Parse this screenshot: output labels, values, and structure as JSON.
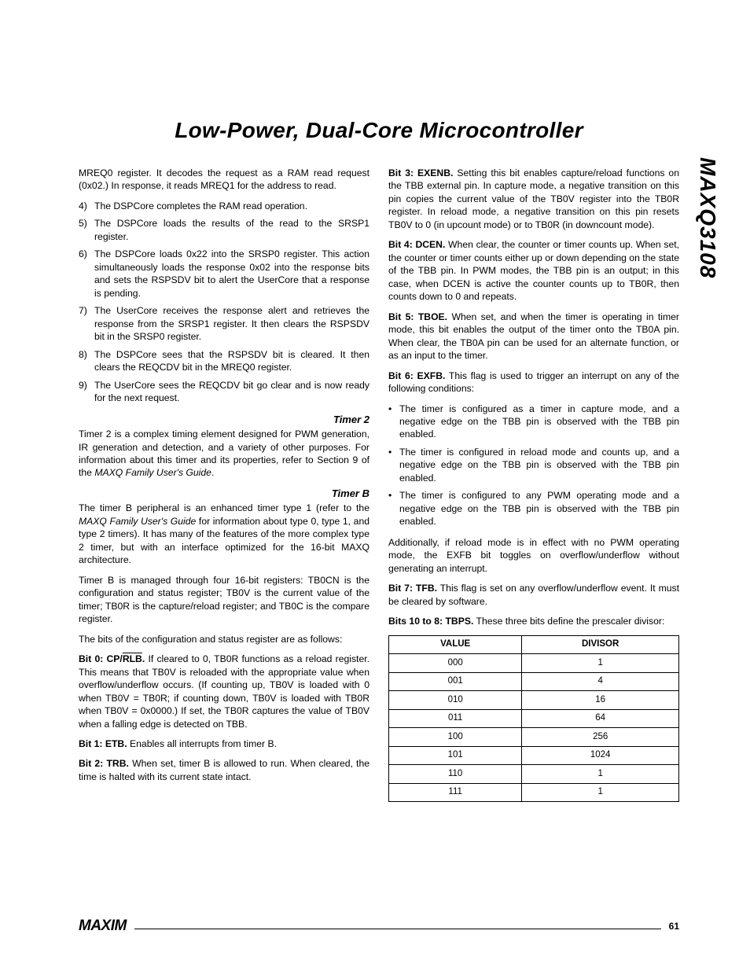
{
  "page": {
    "title": "Low-Power, Dual-Core Microcontroller",
    "partNumber": "MAXQ3108",
    "logo": "MAXIM",
    "pageNumber": "61"
  },
  "leftCol": {
    "introPara": "MREQ0 register. It decodes the request as a RAM read request (0x02.) In response, it reads MREQ1 for the address to read.",
    "numbered": [
      {
        "n": "4)",
        "t": "The DSPCore completes the RAM read operation."
      },
      {
        "n": "5)",
        "t": "The DSPCore loads the results of the read to the SRSP1 register."
      },
      {
        "n": "6)",
        "t": "The DSPCore loads 0x22 into the SRSP0 register. This action simultaneously loads the response 0x02 into the response bits and sets the RSPSDV bit to alert the UserCore that a response is pending."
      },
      {
        "n": "7)",
        "t": "The UserCore receives the response alert and retrieves the response from the SRSP1 register. It then clears the RSPSDV bit in the SRSP0 register."
      },
      {
        "n": "8)",
        "t": "The DSPCore sees that the RSPSDV bit is cleared. It then clears the REQCDV bit in the MREQ0 register."
      },
      {
        "n": "9)",
        "t": "The UserCore sees the REQCDV bit go clear and is now ready for the next request."
      }
    ],
    "timer2": {
      "heading": "Timer 2",
      "body": "Timer 2 is a complex timing element designed for PWM generation, IR generation and detection, and a variety of other purposes. For information about this timer and its properties, refer to Section 9 of the ",
      "ital": "MAXQ Family User's Guide",
      "tail": "."
    },
    "timerB": {
      "heading": "Timer B",
      "p1a": "The timer B peripheral is an enhanced timer type 1 (refer to the ",
      "p1ital": "MAXQ Family User's Guide",
      "p1b": " for information about type 0, type 1, and type 2 timers). It has many of the features of the more complex type 2 timer, but with an interface optimized for the 16-bit MAXQ architecture.",
      "p2": "Timer B is managed through four 16-bit registers: TB0CN is the configuration and status register; TB0V is the current value of the timer; TB0R is the capture/reload register; and TB0C is the compare register.",
      "p3": "The bits of the configuration and status register are as follows:",
      "bit0label": "Bit 0: CP/",
      "bit0over": "RLB",
      "bit0dot": ".",
      "bit0body": " If cleared to 0, TB0R functions as a reload register. This means that TB0V is reloaded with the appropriate value when overflow/underflow occurs. (If counting up, TB0V is loaded with 0 when TB0V = TB0R; if counting down, TB0V is loaded with TB0R when TB0V = 0x0000.) If set, the TB0R captures the value of TB0V when a falling edge is detected on TBB.",
      "bit1label": "Bit 1: ETB.",
      "bit1body": " Enables all interrupts from timer B.",
      "bit2label": "Bit 2: TRB.",
      "bit2body": " When set, timer B is allowed to run. When cleared, the time is halted with its current state intact."
    }
  },
  "rightCol": {
    "bit3label": "Bit 3: EXENB.",
    "bit3body": " Setting this bit enables capture/reload functions on the TBB external pin. In capture mode, a negative transition on this pin copies the current value of the TB0V register into the TB0R register. In reload mode, a negative transition on this pin resets TB0V to 0 (in upcount mode) or to TB0R (in downcount mode).",
    "bit4label": "Bit 4: DCEN.",
    "bit4body": " When clear, the counter or timer counts up. When set, the counter or timer counts either up or down depending on the state of the TBB pin. In PWM modes, the TBB pin is an output; in this case, when DCEN is active the counter counts up to TB0R, then counts down to 0 and repeats.",
    "bit5label": "Bit 5: TBOE.",
    "bit5body": " When set, and when the timer is operating in timer mode, this bit enables the output of the timer onto the TB0A pin. When clear, the TB0A pin can be used for an alternate function, or as an input to the timer.",
    "bit6label": "Bit 6: EXFB.",
    "bit6body": " This flag is used to trigger an interrupt on any of the following conditions:",
    "bullets": [
      "The timer is configured as a timer in capture mode, and a negative edge on the TBB pin is observed with the TBB pin enabled.",
      "The timer is configured in reload mode and counts up, and a negative edge on the TBB pin is observed with the TBB pin enabled.",
      "The timer is configured to any PWM operating mode and a negative edge on the TBB pin is observed with the TBB pin enabled."
    ],
    "afterBullets": "Additionally, if reload mode is in effect with no PWM operating mode, the EXFB bit toggles on overflow/underflow without generating an interrupt.",
    "bit7label": "Bit 7: TFB.",
    "bit7body": " This flag is set on any overflow/underflow event. It must be cleared by software.",
    "bits108label": "Bits 10 to 8: TBPS.",
    "bits108body": " These three bits define the prescaler divisor:",
    "table": {
      "headers": [
        "VALUE",
        "DIVISOR"
      ],
      "rows": [
        [
          "000",
          "1"
        ],
        [
          "001",
          "4"
        ],
        [
          "010",
          "16"
        ],
        [
          "011",
          "64"
        ],
        [
          "100",
          "256"
        ],
        [
          "101",
          "1024"
        ],
        [
          "110",
          "1"
        ],
        [
          "111",
          "1"
        ]
      ]
    }
  }
}
